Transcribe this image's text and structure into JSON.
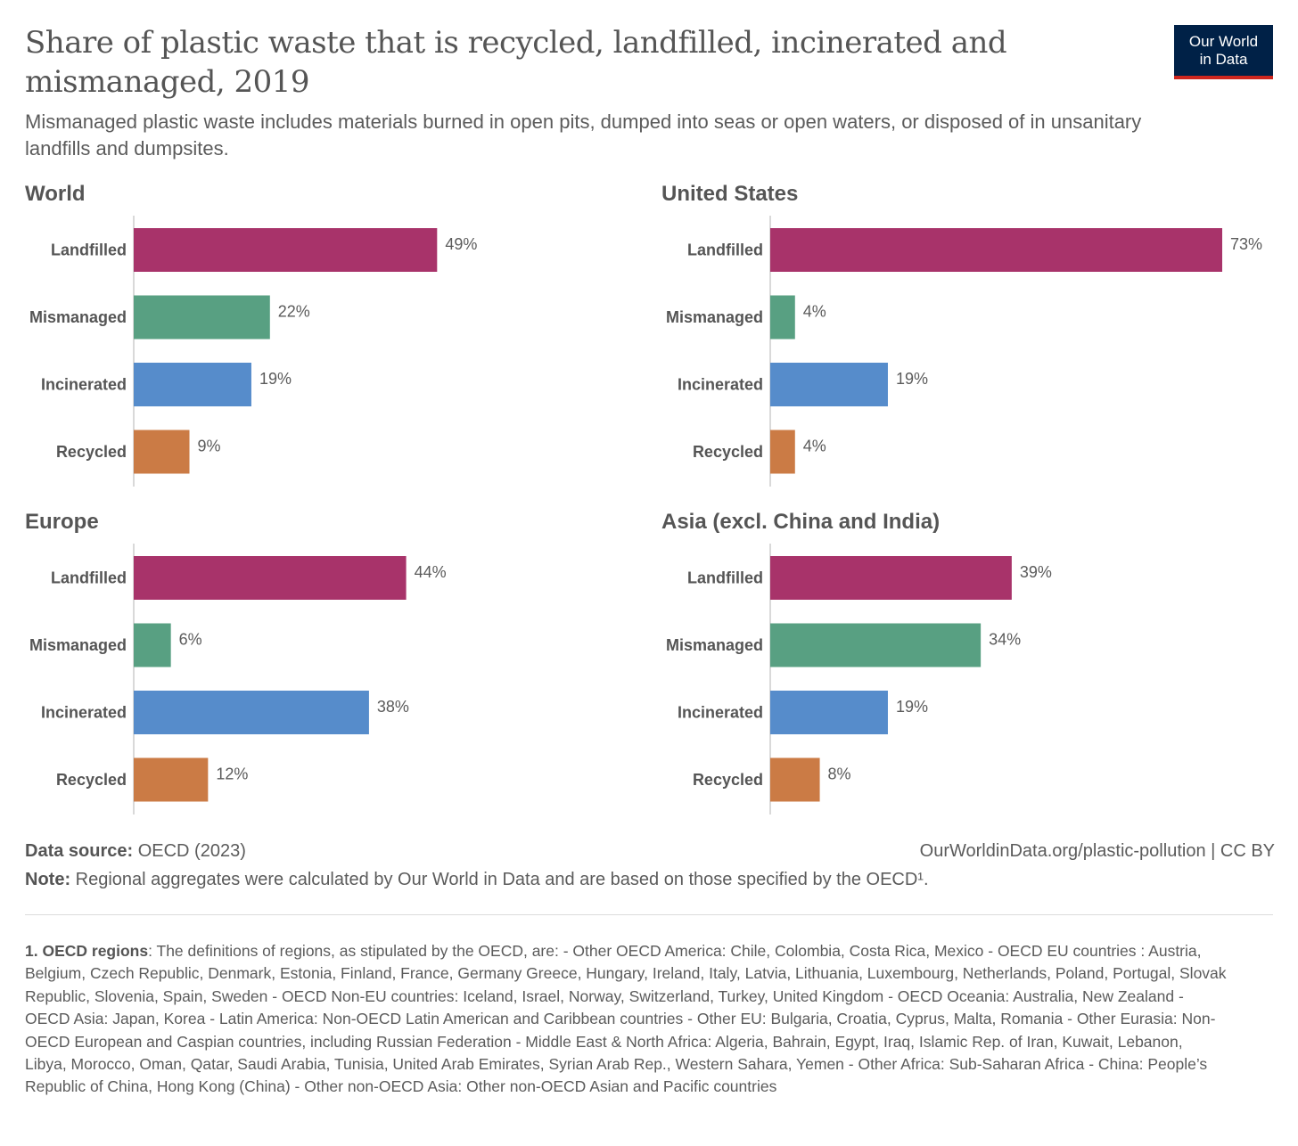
{
  "header": {
    "title": "Share of plastic waste that is recycled, landfilled, incinerated and mismanaged, 2019",
    "subtitle": "Mismanaged plastic waste includes materials burned in open pits, dumped into seas or open waters, or disposed of in unsanitary landfills and dumpsites.",
    "logo_line1": "Our World",
    "logo_line2": "in Data"
  },
  "chart_data": [
    {
      "type": "bar",
      "title": "World",
      "categories": [
        "Landfilled",
        "Mismanaged",
        "Incinerated",
        "Recycled"
      ],
      "values": [
        49,
        22,
        19,
        9
      ],
      "value_labels": [
        "49%",
        "22%",
        "19%",
        "9%"
      ],
      "colors": [
        "#a8336a",
        "#58a082",
        "#568ccb",
        "#cb7b45"
      ],
      "xlim": [
        0,
        73
      ]
    },
    {
      "type": "bar",
      "title": "United States",
      "categories": [
        "Landfilled",
        "Mismanaged",
        "Incinerated",
        "Recycled"
      ],
      "values": [
        73,
        4,
        19,
        4
      ],
      "value_labels": [
        "73%",
        "4%",
        "19%",
        "4%"
      ],
      "colors": [
        "#a8336a",
        "#58a082",
        "#568ccb",
        "#cb7b45"
      ],
      "xlim": [
        0,
        73
      ]
    },
    {
      "type": "bar",
      "title": "Europe",
      "categories": [
        "Landfilled",
        "Mismanaged",
        "Incinerated",
        "Recycled"
      ],
      "values": [
        44,
        6,
        38,
        12
      ],
      "value_labels": [
        "44%",
        "6%",
        "38%",
        "12%"
      ],
      "colors": [
        "#a8336a",
        "#58a082",
        "#568ccb",
        "#cb7b45"
      ],
      "xlim": [
        0,
        73
      ]
    },
    {
      "type": "bar",
      "title": "Asia (excl. China and India)",
      "categories": [
        "Landfilled",
        "Mismanaged",
        "Incinerated",
        "Recycled"
      ],
      "values": [
        39,
        34,
        19,
        8
      ],
      "value_labels": [
        "39%",
        "34%",
        "19%",
        "8%"
      ],
      "colors": [
        "#a8336a",
        "#58a082",
        "#568ccb",
        "#cb7b45"
      ],
      "xlim": [
        0,
        73
      ]
    }
  ],
  "footer": {
    "source_label": "Data source:",
    "source_text": "OECD (2023)",
    "url_text": "OurWorldinData.org/plastic-pollution | CC BY",
    "note_label": "Note:",
    "note_text": "Regional aggregates were calculated by Our World in Data and are based on those specified by the OECD¹.",
    "footnote_label": "1. OECD regions",
    "footnote_text": ": The definitions of regions, as stipulated by the OECD, are: - Other OECD America: Chile, Colombia, Costa Rica, Mexico - OECD EU countries : Austria, Belgium, Czech Republic, Denmark, Estonia, Finland, France, Germany Greece, Hungary, Ireland, Italy, Latvia, Lithuania, Luxembourg, Netherlands, Poland, Portugal, Slovak Republic, Slovenia, Spain, Sweden - OECD Non-EU countries: Iceland, Israel, Norway, Switzerland, Turkey, United Kingdom - OECD Oceania: Australia, New Zealand - OECD Asia: Japan, Korea - Latin America: Non-OECD Latin American and Caribbean countries - Other EU: Bulgaria, Croatia, Cyprus, Malta, Romania - Other Eurasia: Non-OECD European and Caspian countries, including Russian Federation - Middle East & North Africa: Algeria, Bahrain, Egypt, Iraq, Islamic Rep. of Iran, Kuwait, Lebanon, Libya, Morocco, Oman, Qatar, Saudi Arabia, Tunisia, United Arab Emirates, Syrian Arab Rep., Western Sahara, Yemen - Other Africa: Sub-Saharan Africa - China: People’s Republic of China, Hong Kong (China) - Other non-OECD Asia: Other non-OECD Asian and Pacific countries"
  }
}
